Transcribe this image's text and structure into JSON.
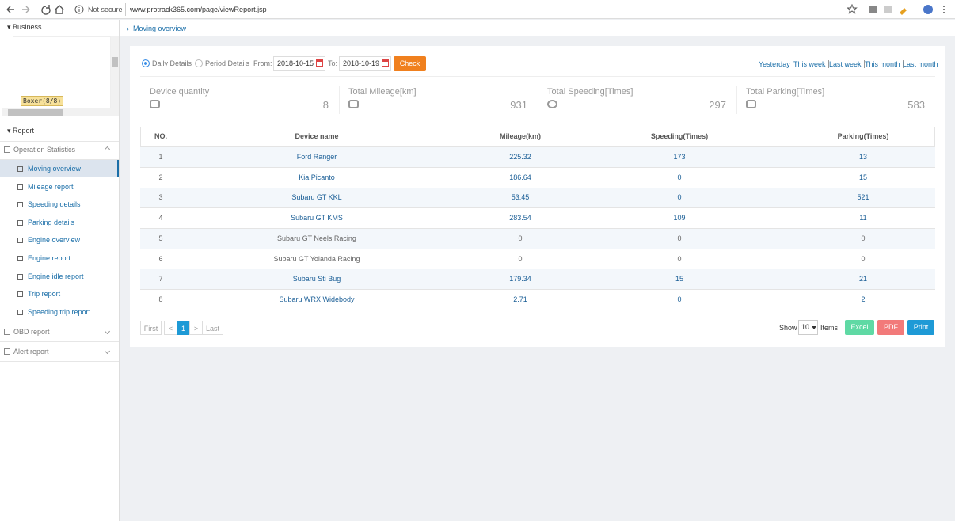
{
  "browser": {
    "security": "Not secure",
    "url": "www.protrack365.com/page/viewReport.jsp"
  },
  "sidebar": {
    "business": "Business",
    "tree_item": "Boxer(8/8)",
    "report": "Report",
    "groups": [
      {
        "label": "Operation Statistics",
        "items": [
          "Moving overview",
          "Mileage report",
          "Speeding details",
          "Parking details",
          "Engine overview",
          "Engine report",
          "Engine idle report",
          "Trip report",
          "Speeding trip report"
        ]
      },
      {
        "label": "OBD report",
        "items": []
      },
      {
        "label": "Alert report",
        "items": []
      }
    ]
  },
  "breadcrumb": "Moving overview",
  "filters": {
    "options": [
      "Daily Details",
      "Period Details"
    ],
    "from_label": "From:",
    "from": "2018-10-15",
    "to_label": "To:",
    "to": "2018-10-19",
    "submit": "Check",
    "quick_links": [
      "Yesterday",
      "This week",
      "Last week",
      "This month",
      "Last month"
    ]
  },
  "summary": [
    {
      "label": "Device quantity",
      "value": 8
    },
    {
      "label": "Total Mileage[km]",
      "value": 931
    },
    {
      "label": "Total Speeding[Times]",
      "value": 297
    },
    {
      "label": "Total Parking[Times]",
      "value": 583
    }
  ],
  "table": {
    "headers": [
      "NO.",
      "Device name",
      "Mileage(km)",
      "Speeding(Times)",
      "Parking(Times)"
    ],
    "rows": [
      [
        1,
        "Ford Ranger",
        225.32,
        173,
        13
      ],
      [
        2,
        "Kia Picanto",
        186.64,
        0,
        15
      ],
      [
        3,
        "Subaru GT KKL",
        53.45,
        0,
        521
      ],
      [
        4,
        "Subaru GT KMS",
        283.54,
        109,
        11
      ],
      [
        5,
        "Subaru GT Neels Racing",
        0,
        0,
        0
      ],
      [
        6,
        "Subaru GT Yolanda Racing",
        0,
        0,
        0
      ],
      [
        7,
        "Subaru Sti Bug",
        179.34,
        15,
        21
      ],
      [
        8,
        "Subaru WRX Widebody",
        2.71,
        0,
        2
      ]
    ]
  },
  "pagination": {
    "pages": [
      "First",
      "<",
      "1",
      ">",
      "Last"
    ],
    "show": "Show",
    "page_size": "10",
    "items": "Items",
    "exports": [
      "Excel",
      "PDF",
      "Print"
    ]
  }
}
